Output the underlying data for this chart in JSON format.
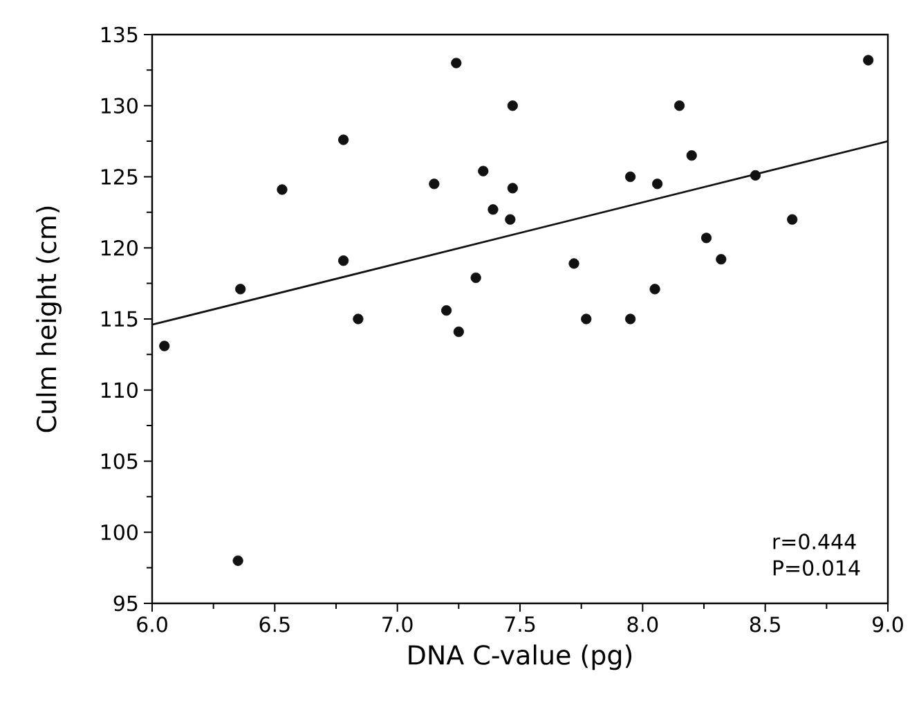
{
  "chart_data": {
    "type": "scatter",
    "xlabel": "DNA C-value (pg)",
    "ylabel": "Culm height (cm)",
    "xlim": [
      6.0,
      9.0
    ],
    "ylim": [
      95,
      135
    ],
    "xticks": [
      {
        "value": 6.0,
        "label": "6.0"
      },
      {
        "value": 6.5,
        "label": "6.5"
      },
      {
        "value": 7.0,
        "label": "7.0"
      },
      {
        "value": 7.5,
        "label": "7.5"
      },
      {
        "value": 8.0,
        "label": "8.0"
      },
      {
        "value": 8.5,
        "label": "8.5"
      },
      {
        "value": 9.0,
        "label": "9.0"
      }
    ],
    "yticks": [
      95,
      100,
      105,
      110,
      115,
      120,
      125,
      130,
      135
    ],
    "marker": "circle",
    "annotations": [
      "r=0.444",
      "P=0.014"
    ],
    "series": [
      {
        "color": "#111111",
        "x": [
          7.24,
          6.78,
          6.53,
          7.15,
          7.35,
          7.39,
          6.78,
          7.32,
          6.36,
          7.2,
          6.84,
          7.25,
          6.05,
          6.35,
          8.92,
          7.47,
          8.15,
          8.2,
          7.95,
          8.06,
          8.46,
          7.47,
          7.46,
          8.61,
          8.26,
          8.32,
          7.72,
          8.05,
          7.77,
          7.95
        ],
        "values": [
          133,
          127.6,
          124.1,
          124.5,
          125.4,
          122.7,
          119.1,
          117.9,
          117.1,
          115.6,
          115,
          114.1,
          113.1,
          98,
          133.2,
          130,
          130,
          126.5,
          125,
          124.5,
          125.1,
          124.2,
          122,
          122,
          120.7,
          119.2,
          118.9,
          117.1,
          115,
          115
        ]
      },
      {
        "type": "line",
        "color": "#111111",
        "marker": "none",
        "x": [
          6.0,
          9.0
        ],
        "values": [
          114.6,
          127.5
        ]
      }
    ]
  }
}
